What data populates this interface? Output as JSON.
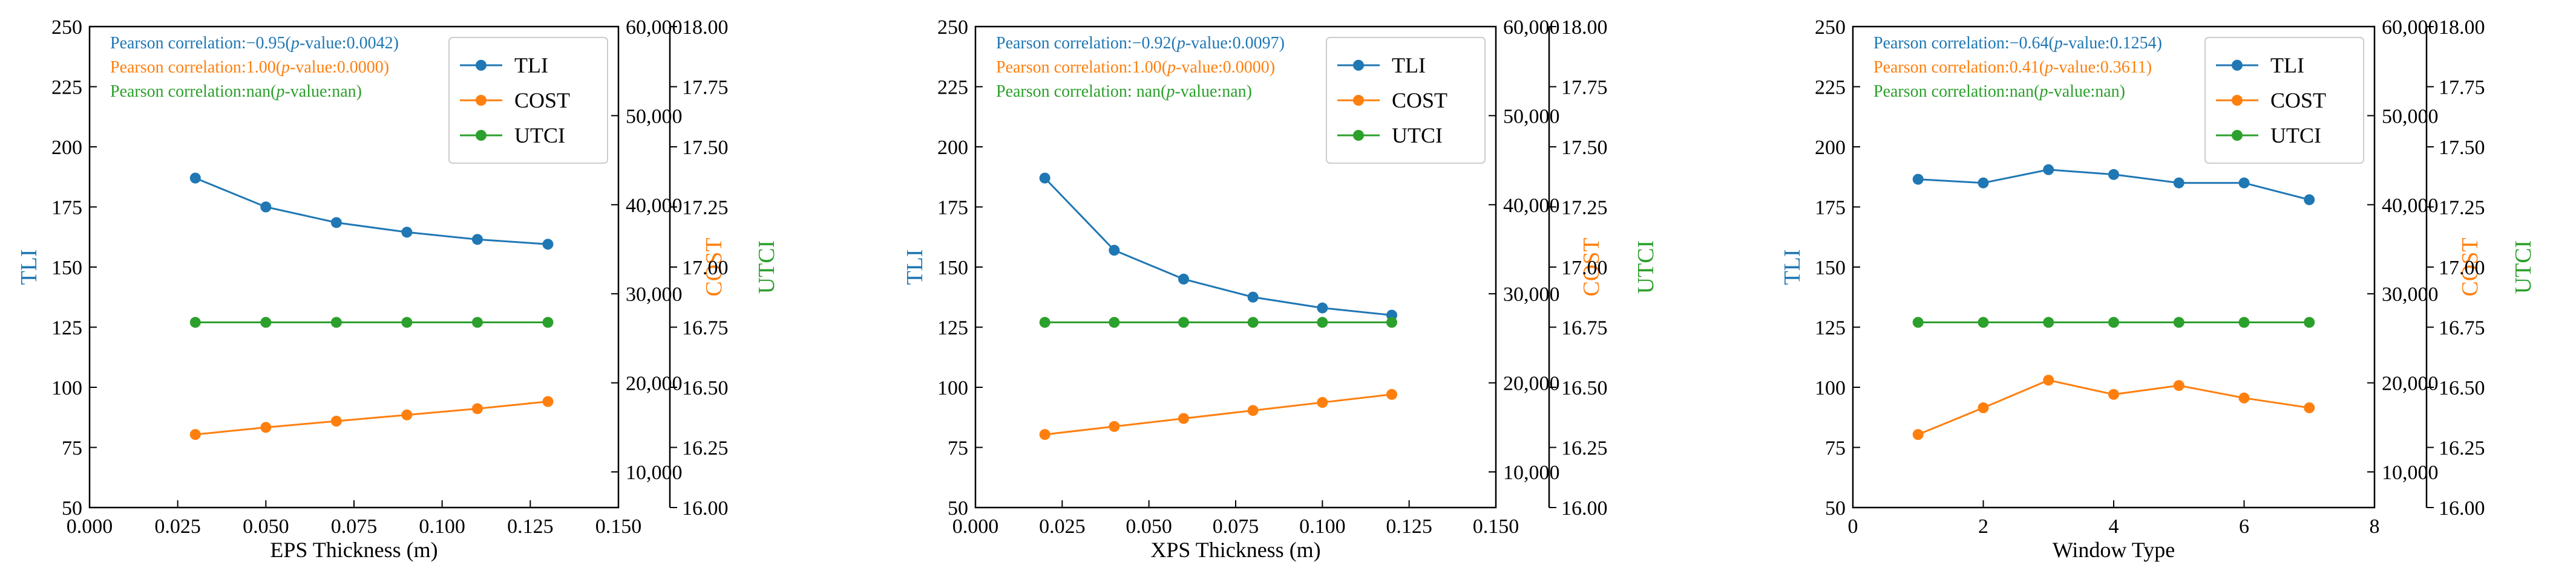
{
  "colors": {
    "TLI": "#1f77b4",
    "COST": "#ff7f0e",
    "UTCI": "#2ca02c",
    "axis": "#000000"
  },
  "chart_data": [
    {
      "type": "line",
      "xlabel": "EPS Thickness (m)",
      "xlim": [
        0.0,
        0.15
      ],
      "xticks": [
        "0.000",
        "0.025",
        "0.050",
        "0.075",
        "0.100",
        "0.125",
        "0.150"
      ],
      "x": [
        0.03,
        0.05,
        0.07,
        0.09,
        0.11,
        0.13
      ],
      "axes": {
        "left": {
          "label": "TLI",
          "lim": [
            50,
            250
          ],
          "ticks": [
            "50",
            "75",
            "100",
            "125",
            "150",
            "175",
            "200",
            "225",
            "250"
          ]
        },
        "right1": {
          "label": "COST",
          "lim": [
            6000,
            60000
          ],
          "ticks": [
            "10,000",
            "20,000",
            "30,000",
            "40,000",
            "50,000",
            "60,000"
          ]
        },
        "right2": {
          "label": "UTCI",
          "lim": [
            16.0,
            18.0
          ],
          "ticks": [
            "16.00",
            "16.25",
            "16.50",
            "16.75",
            "17.00",
            "17.25",
            "17.50",
            "17.75",
            "18.00"
          ]
        }
      },
      "series": [
        {
          "name": "TLI",
          "axis": "left",
          "values": [
            187,
            175,
            168.5,
            164.5,
            161.5,
            159.5
          ]
        },
        {
          "name": "COST",
          "axis": "right1",
          "values": [
            14200,
            15000,
            15700,
            16400,
            17100,
            17900
          ]
        },
        {
          "name": "UTCI",
          "axis": "right2",
          "values": [
            16.77,
            16.77,
            16.77,
            16.77,
            16.77,
            16.77
          ]
        }
      ],
      "legend": {
        "position": "top-right",
        "entries": [
          "TLI",
          "COST",
          "UTCI"
        ]
      },
      "annotations": [
        {
          "series": "TLI",
          "prefix": "Pearson correlation:",
          "r": "−0.95",
          "open": "(",
          "p": "p",
          "rest": "-value:0.0042)"
        },
        {
          "series": "COST",
          "prefix": "Pearson correlation:",
          "r": "1.00",
          "open": "(",
          "p": "p",
          "rest": "-value:0.0000)"
        },
        {
          "series": "UTCI",
          "prefix": "Pearson correlation:",
          "r": "nan",
          "open": "(",
          "p": "p",
          "rest": "-value:nan)"
        }
      ]
    },
    {
      "type": "line",
      "xlabel": "XPS Thickness (m)",
      "xlim": [
        0.0,
        0.15
      ],
      "xticks": [
        "0.000",
        "0.025",
        "0.050",
        "0.075",
        "0.100",
        "0.125",
        "0.150"
      ],
      "x": [
        0.02,
        0.04,
        0.06,
        0.08,
        0.1,
        0.12
      ],
      "axes": {
        "left": {
          "label": "TLI",
          "lim": [
            50,
            250
          ],
          "ticks": [
            "50",
            "75",
            "100",
            "125",
            "150",
            "175",
            "200",
            "225",
            "250"
          ]
        },
        "right1": {
          "label": "COST",
          "lim": [
            6000,
            60000
          ],
          "ticks": [
            "10,000",
            "20,000",
            "30,000",
            "40,000",
            "50,000",
            "60,000"
          ]
        },
        "right2": {
          "label": "UTCI",
          "lim": [
            16.0,
            18.0
          ],
          "ticks": [
            "16.00",
            "16.25",
            "16.50",
            "16.75",
            "17.00",
            "17.25",
            "17.50",
            "17.75",
            "18.00"
          ]
        }
      },
      "series": [
        {
          "name": "TLI",
          "axis": "left",
          "values": [
            187,
            157,
            145,
            137.5,
            133,
            130
          ]
        },
        {
          "name": "COST",
          "axis": "right1",
          "values": [
            14200,
            15100,
            16000,
            16900,
            17800,
            18700
          ]
        },
        {
          "name": "UTCI",
          "axis": "right2",
          "values": [
            16.77,
            16.77,
            16.77,
            16.77,
            16.77,
            16.77
          ]
        }
      ],
      "legend": {
        "position": "top-right",
        "entries": [
          "TLI",
          "COST",
          "UTCI"
        ]
      },
      "annotations": [
        {
          "series": "TLI",
          "prefix": "Pearson correlation:",
          "r": "−0.92",
          "open": "(",
          "p": "p",
          "rest": "-value:0.0097)"
        },
        {
          "series": "COST",
          "prefix": "Pearson correlation:",
          "r": "1.00",
          "open": "(",
          "p": "p",
          "rest": "-value:0.0000)"
        },
        {
          "series": "UTCI",
          "prefix": "Pearson correlation: ",
          "r": "nan",
          "open": "(",
          "p": "p",
          "rest": "-value:nan)"
        }
      ]
    },
    {
      "type": "line",
      "xlabel": "Window Type",
      "xlim": [
        0,
        8
      ],
      "xticks": [
        "0",
        "2",
        "4",
        "6",
        "8"
      ],
      "x": [
        1,
        2,
        3,
        4,
        5,
        6,
        7
      ],
      "axes": {
        "left": {
          "label": "TLI",
          "lim": [
            50,
            250
          ],
          "ticks": [
            "50",
            "75",
            "100",
            "125",
            "150",
            "175",
            "200",
            "225",
            "250"
          ]
        },
        "right1": {
          "label": "COST",
          "lim": [
            6000,
            60000
          ],
          "ticks": [
            "10,000",
            "20,000",
            "30,000",
            "40,000",
            "50,000",
            "60,000"
          ]
        },
        "right2": {
          "label": "UTCI",
          "lim": [
            16.0,
            18.0
          ],
          "ticks": [
            "16.00",
            "16.25",
            "16.50",
            "16.75",
            "17.00",
            "17.25",
            "17.50",
            "17.75",
            "18.00"
          ]
        }
      },
      "series": [
        {
          "name": "TLI",
          "axis": "left",
          "values": [
            186.5,
            185,
            190.5,
            188.5,
            185,
            185,
            178
          ]
        },
        {
          "name": "COST",
          "axis": "right1",
          "values": [
            14200,
            17200,
            20300,
            18700,
            19700,
            18300,
            17200
          ]
        },
        {
          "name": "UTCI",
          "axis": "right2",
          "values": [
            16.77,
            16.77,
            16.77,
            16.77,
            16.77,
            16.77,
            16.77
          ]
        }
      ],
      "legend": {
        "position": "top-right",
        "entries": [
          "TLI",
          "COST",
          "UTCI"
        ]
      },
      "annotations": [
        {
          "series": "TLI",
          "prefix": "Pearson correlation:",
          "r": "−0.64",
          "open": "(",
          "p": "p",
          "rest": "-value:0.1254)"
        },
        {
          "series": "COST",
          "prefix": "Pearson correlation:",
          "r": "0.41",
          "open": "(",
          "p": "p",
          "rest": "-value:0.3611)"
        },
        {
          "series": "UTCI",
          "prefix": "Pearson correlation:",
          "r": "nan",
          "open": "(",
          "p": "p",
          "rest": "-value:nan)"
        }
      ]
    }
  ]
}
